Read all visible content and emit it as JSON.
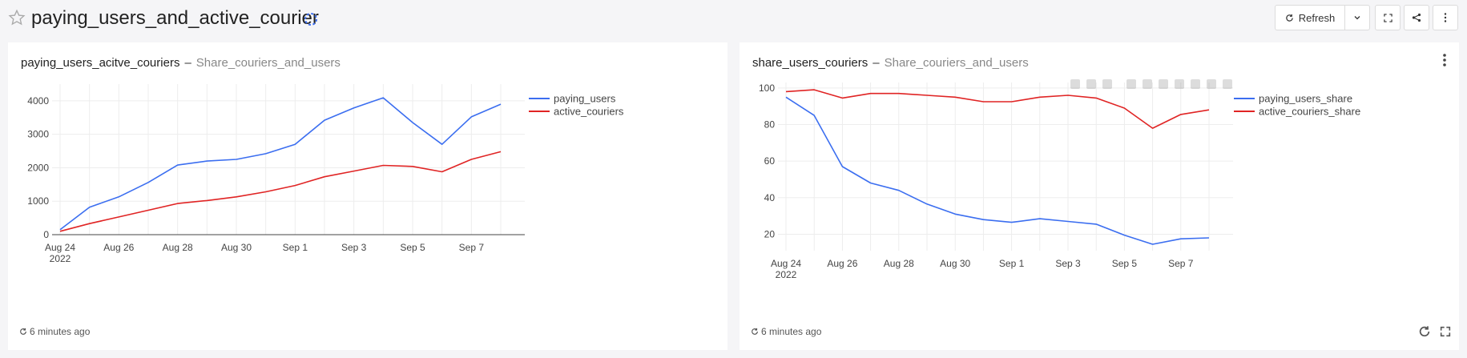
{
  "header": {
    "title": "paying_users_and_active_courier",
    "star_icon": "star-icon",
    "refresh_label": "Refresh"
  },
  "panels": [
    {
      "title": "paying_users_acitve_couriers",
      "separator": "–",
      "subtitle": "Share_couriers_and_users",
      "updated": "6 minutes ago"
    },
    {
      "title": "share_users_couriers",
      "separator": "–",
      "subtitle": "Share_couriers_and_users",
      "updated": "6 minutes ago"
    }
  ],
  "chart_data": [
    {
      "type": "line",
      "x": [
        "2022-08-24",
        "2022-08-25",
        "2022-08-26",
        "2022-08-27",
        "2022-08-28",
        "2022-08-29",
        "2022-08-30",
        "2022-08-31",
        "2022-09-01",
        "2022-09-02",
        "2022-09-03",
        "2022-09-04",
        "2022-09-05",
        "2022-09-06",
        "2022-09-07",
        "2022-09-08"
      ],
      "x_ticks": [
        "Aug 24\n2022",
        "Aug 26",
        "Aug 28",
        "Aug 30",
        "Sep 1",
        "Sep 3",
        "Sep 5",
        "Sep 7"
      ],
      "series": [
        {
          "name": "paying_users",
          "color": "#3b6ef0",
          "values": [
            150,
            820,
            1130,
            1560,
            2080,
            2200,
            2250,
            2420,
            2700,
            3420,
            3790,
            4090,
            3350,
            2700,
            3520,
            3900
          ]
        },
        {
          "name": "active_couriers",
          "color": "#e02424",
          "values": [
            100,
            330,
            530,
            730,
            930,
            1020,
            1130,
            1280,
            1470,
            1730,
            1900,
            2070,
            2040,
            1880,
            2250,
            2480
          ]
        }
      ],
      "y_ticks": [
        0,
        1000,
        2000,
        3000,
        4000
      ],
      "ylim": [
        0,
        4500
      ],
      "grid": true,
      "legend": "top-right"
    },
    {
      "type": "line",
      "x": [
        "2022-08-24",
        "2022-08-25",
        "2022-08-26",
        "2022-08-27",
        "2022-08-28",
        "2022-08-29",
        "2022-08-30",
        "2022-08-31",
        "2022-09-01",
        "2022-09-02",
        "2022-09-03",
        "2022-09-04",
        "2022-09-05",
        "2022-09-06",
        "2022-09-07",
        "2022-09-08"
      ],
      "x_ticks": [
        "Aug 24\n2022",
        "Aug 26",
        "Aug 28",
        "Aug 30",
        "Sep 1",
        "Sep 3",
        "Sep 5",
        "Sep 7"
      ],
      "series": [
        {
          "name": "paying_users_share",
          "color": "#3b6ef0",
          "values": [
            95,
            85,
            57,
            48,
            44,
            36.5,
            31,
            28,
            26.5,
            28.5,
            27,
            25.5,
            19.5,
            14.5,
            17.5,
            18
          ]
        },
        {
          "name": "active_couriers_share",
          "color": "#e02424",
          "values": [
            98,
            99,
            94.5,
            97,
            97,
            96,
            95,
            92.5,
            92.5,
            95,
            96,
            94.5,
            89,
            78,
            85.5,
            88
          ]
        }
      ],
      "y_ticks": [
        20,
        40,
        60,
        80,
        100
      ],
      "ylim": [
        11,
        103
      ],
      "grid": true,
      "legend": "top-right"
    }
  ]
}
